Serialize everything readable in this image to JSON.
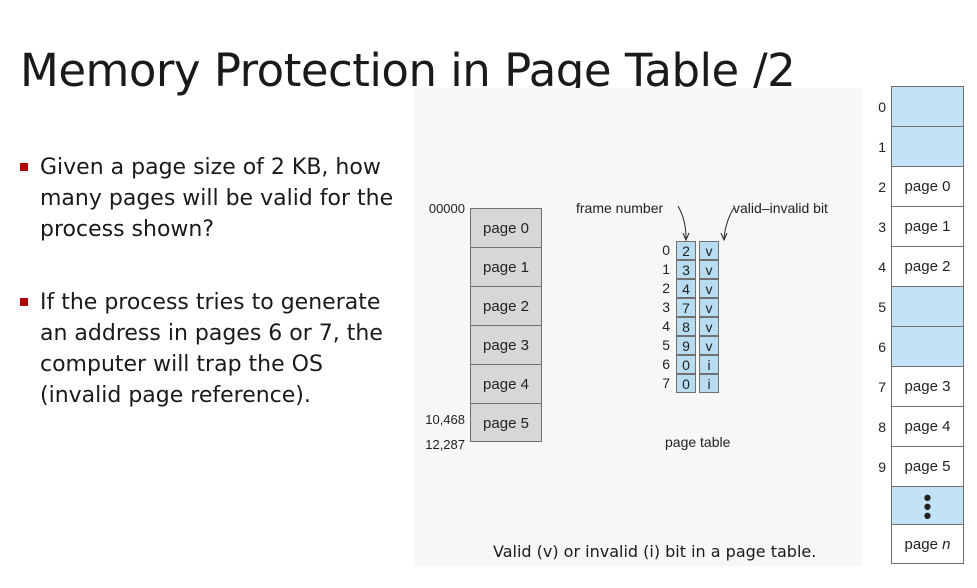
{
  "slide": {
    "title": "Memory Protection in Page Table /2",
    "bullets": [
      "Given a page size of 2 KB, how many pages will be valid for the process shown?",
      "If the process tries to generate an address in pages 6 or 7, the computer will trap the OS (invalid page reference)."
    ],
    "caption": "Valid (v) or invalid (i) bit in a page table."
  },
  "logical_memory": {
    "start_address": "00000",
    "addr_mid": "10,468",
    "addr_end": "12,287",
    "pages": [
      "page 0",
      "page 1",
      "page 2",
      "page 3",
      "page 4",
      "page 5"
    ]
  },
  "page_table": {
    "label_frame": "frame number",
    "label_valid": "valid–invalid bit",
    "caption": "page table",
    "rows": [
      {
        "index": "0",
        "frame": "2",
        "bit": "v"
      },
      {
        "index": "1",
        "frame": "3",
        "bit": "v"
      },
      {
        "index": "2",
        "frame": "4",
        "bit": "v"
      },
      {
        "index": "3",
        "frame": "7",
        "bit": "v"
      },
      {
        "index": "4",
        "frame": "8",
        "bit": "v"
      },
      {
        "index": "5",
        "frame": "9",
        "bit": "v"
      },
      {
        "index": "6",
        "frame": "0",
        "bit": "i"
      },
      {
        "index": "7",
        "frame": "0",
        "bit": "i"
      }
    ]
  },
  "physical_memory": {
    "frames": [
      {
        "index": "0",
        "label": ""
      },
      {
        "index": "1",
        "label": ""
      },
      {
        "index": "2",
        "label": "page 0"
      },
      {
        "index": "3",
        "label": "page 1"
      },
      {
        "index": "4",
        "label": "page 2"
      },
      {
        "index": "5",
        "label": ""
      },
      {
        "index": "6",
        "label": ""
      },
      {
        "index": "7",
        "label": "page 3"
      },
      {
        "index": "8",
        "label": "page 4"
      },
      {
        "index": "9",
        "label": "page 5"
      }
    ],
    "last_label": "page",
    "last_label_n": "n",
    "dots": "•\n•\n•"
  },
  "colors": {
    "bullet_marker": "#b30000",
    "logical_fill": "#d7d7d7",
    "table_fill": "#b8dcf0",
    "frame_fill": "#c3e2f6"
  }
}
